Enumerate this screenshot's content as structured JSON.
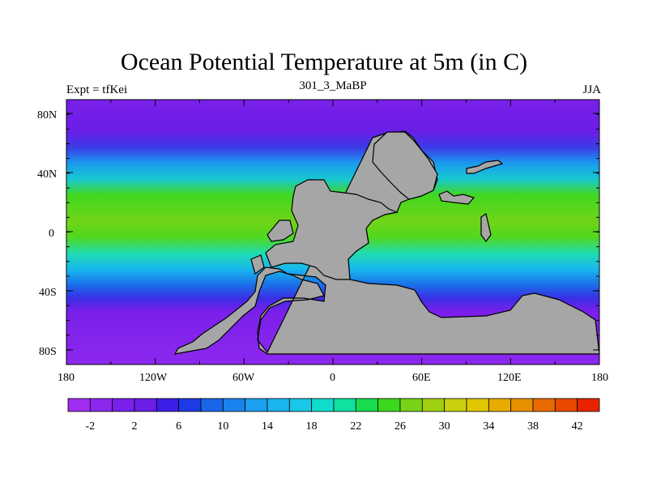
{
  "title": "Ocean Potential Temperature at 5m (in C)",
  "subtitle_left": "Expt = tfKei",
  "subtitle_center": "301_3_MaBP",
  "subtitle_right": "JJA",
  "y_ticks": [
    "80N",
    "40N",
    "0",
    "40S",
    "80S"
  ],
  "x_ticks": [
    "180",
    "120W",
    "60W",
    "0",
    "60E",
    "120E",
    "180"
  ],
  "colorbar_labels": [
    "-2",
    "2",
    "6",
    "10",
    "14",
    "18",
    "22",
    "26",
    "30",
    "34",
    "38",
    "42"
  ],
  "colorbar_colors": [
    "#a02df0",
    "#8c28ee",
    "#7a20ea",
    "#6a1ee6",
    "#3a1ee6",
    "#1e3ae6",
    "#1a64e8",
    "#1a82ec",
    "#1aa0ee",
    "#1ab4ee",
    "#18c8e6",
    "#10dccc",
    "#10e0a0",
    "#18dc50",
    "#3cd81e",
    "#78d218",
    "#a0d010",
    "#c8d010",
    "#e0c800",
    "#e8ac00",
    "#e89000",
    "#e86a00",
    "#e84800",
    "#e82400"
  ],
  "land_color": "#a6a6a6"
}
